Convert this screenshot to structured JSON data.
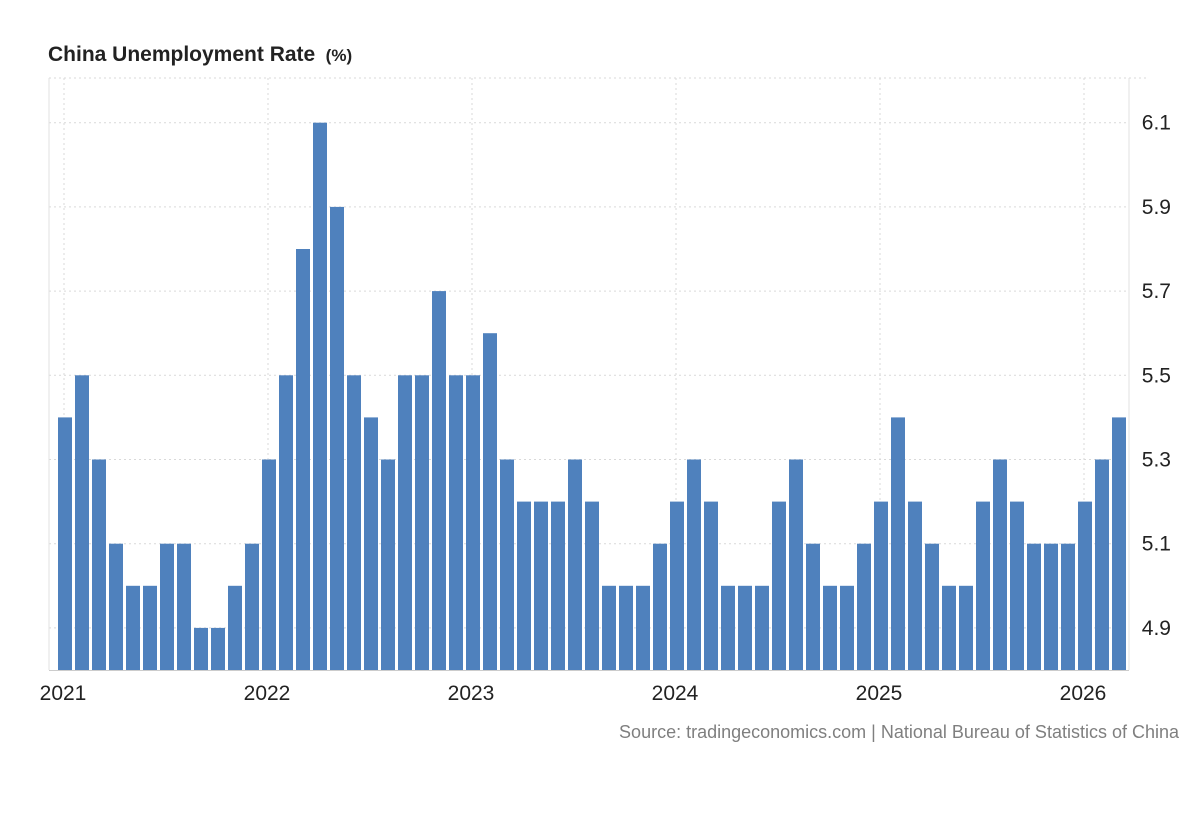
{
  "chart_data": {
    "type": "bar",
    "title": "China Unemployment Rate",
    "unit": "(%)",
    "source": "Source: tradingeconomics.com | National Bureau of Statistics of China",
    "start": "2021-01",
    "x": [
      "2021-01",
      "2021-02",
      "2021-03",
      "2021-04",
      "2021-05",
      "2021-06",
      "2021-07",
      "2021-08",
      "2021-09",
      "2021-10",
      "2021-11",
      "2021-12",
      "2022-01",
      "2022-02",
      "2022-03",
      "2022-04",
      "2022-05",
      "2022-06",
      "2022-07",
      "2022-08",
      "2022-09",
      "2022-10",
      "2022-11",
      "2022-12",
      "2023-01",
      "2023-02",
      "2023-03",
      "2023-04",
      "2023-05",
      "2023-06",
      "2023-07",
      "2023-08",
      "2023-09",
      "2023-10",
      "2023-11",
      "2023-12",
      "2024-01",
      "2024-02",
      "2024-03",
      "2024-04",
      "2024-05",
      "2024-06",
      "2024-07",
      "2024-08",
      "2024-09",
      "2024-10",
      "2024-11",
      "2024-12",
      "2025-01",
      "2025-02",
      "2025-03",
      "2025-04",
      "2025-05",
      "2025-06",
      "2025-07",
      "2025-08",
      "2025-09",
      "2025-10",
      "2025-11",
      "2025-12",
      "2026-01",
      "2026-02",
      "2026-03"
    ],
    "values": [
      5.4,
      5.5,
      5.3,
      5.1,
      5.0,
      5.0,
      5.1,
      5.1,
      4.9,
      4.9,
      5.0,
      5.1,
      5.3,
      5.5,
      5.8,
      6.1,
      5.9,
      5.5,
      5.4,
      5.3,
      5.5,
      5.5,
      5.7,
      5.5,
      5.5,
      5.6,
      5.3,
      5.2,
      5.2,
      5.2,
      5.3,
      5.2,
      5.0,
      5.0,
      5.0,
      5.1,
      5.2,
      5.3,
      5.2,
      5.0,
      5.0,
      5.0,
      5.2,
      5.3,
      5.1,
      5.0,
      5.0,
      5.1,
      5.2,
      5.4,
      5.2,
      5.1,
      5.0,
      5.0,
      5.2,
      5.3,
      5.2,
      5.1,
      5.1,
      5.1,
      5.2,
      5.3,
      5.4
    ],
    "x_tick_labels": [
      "2021",
      "2022",
      "2023",
      "2024",
      "2025",
      "2026"
    ],
    "y_tick_labels": [
      "4.9",
      "5.1",
      "5.3",
      "5.5",
      "5.7",
      "5.9",
      "6.1"
    ],
    "ylim": [
      4.8,
      6.2
    ],
    "grid": true,
    "bar_color": "#4f81bd"
  }
}
